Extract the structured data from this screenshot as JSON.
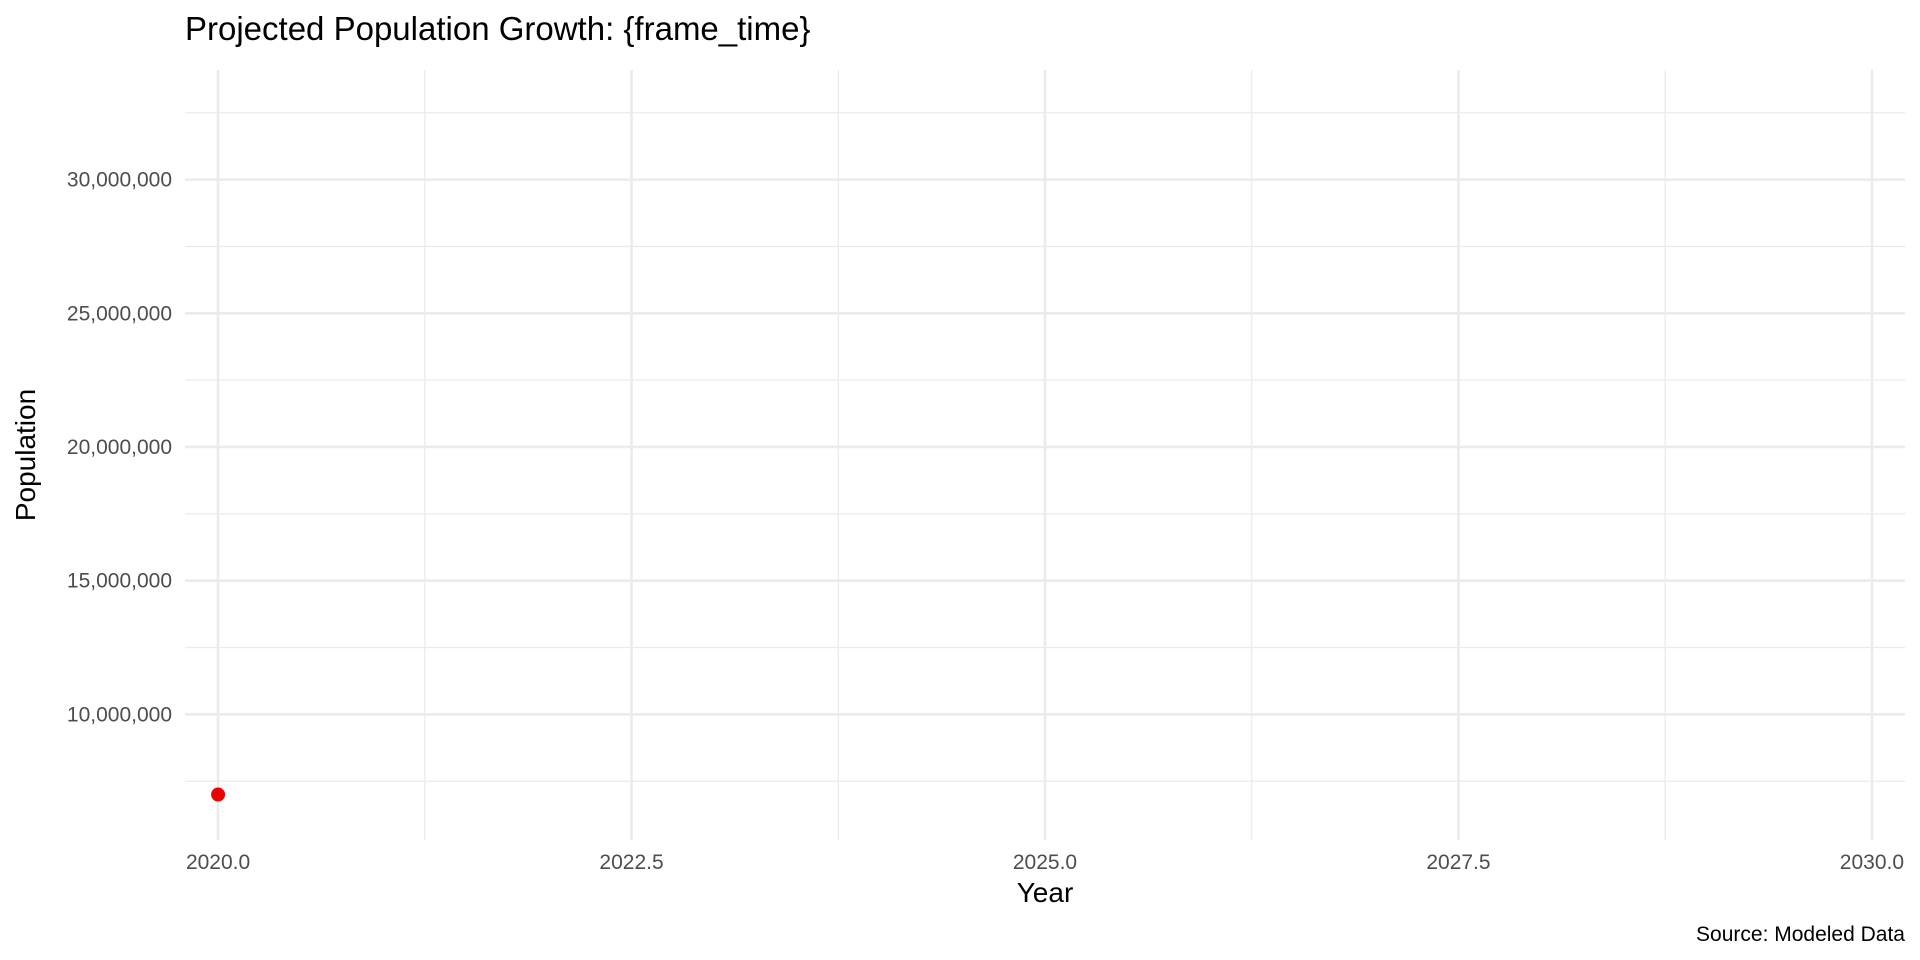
{
  "chart_data": {
    "type": "scatter",
    "title": "Projected Population Growth: {frame_time}",
    "xlabel": "Year",
    "ylabel": "Population",
    "caption": "Source: Modeled Data",
    "xlim": [
      2019.8,
      2030.2
    ],
    "ylim": [
      5300000,
      34100000
    ],
    "x_ticks": [
      2020.0,
      2022.5,
      2025.0,
      2027.5,
      2030.0
    ],
    "x_tick_labels": [
      "2020.0",
      "2022.5",
      "2025.0",
      "2027.5",
      "2030.0"
    ],
    "y_ticks": [
      10000000,
      15000000,
      20000000,
      25000000,
      30000000
    ],
    "y_tick_labels": [
      "10,000,000",
      "15,000,000",
      "20,000,000",
      "25,000,000",
      "30,000,000"
    ],
    "grid": true,
    "legend": "none",
    "point_color": "#EE0000",
    "points": [
      {
        "x": 2020,
        "y": 7000000
      }
    ]
  }
}
